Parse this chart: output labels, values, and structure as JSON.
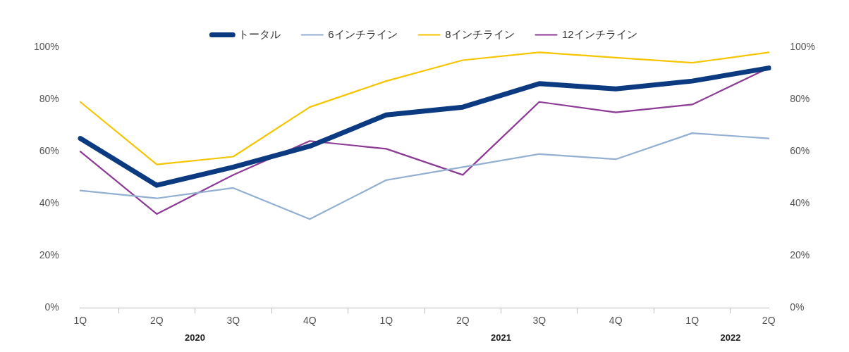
{
  "chart_data": {
    "type": "line",
    "categories": [
      "1Q",
      "2Q",
      "3Q",
      "4Q",
      "1Q",
      "2Q",
      "3Q",
      "4Q",
      "1Q",
      "2Q"
    ],
    "series": [
      {
        "name": "トータル",
        "color": "#0b3a80",
        "values": [
          65,
          47,
          54,
          62,
          74,
          77,
          86,
          84,
          87,
          92
        ]
      },
      {
        "name": "6インチライン",
        "color": "#93afd1",
        "values": [
          45,
          42,
          46,
          34,
          49,
          54,
          59,
          57,
          67,
          65
        ]
      },
      {
        "name": "8インチライン",
        "color": "#f5c500",
        "values": [
          79,
          55,
          58,
          77,
          87,
          95,
          98,
          96,
          94,
          98
        ]
      },
      {
        "name": "12インチライン",
        "color": "#8c3a96",
        "values": [
          60,
          36,
          51,
          64,
          61,
          51,
          79,
          75,
          78,
          92
        ]
      }
    ],
    "ylim": [
      0,
      100
    ],
    "yticks": [
      {
        "value": 0,
        "label": "0%"
      },
      {
        "value": 20,
        "label": "20%"
      },
      {
        "value": 40,
        "label": "40%"
      },
      {
        "value": 60,
        "label": "60%"
      },
      {
        "value": 80,
        "label": "80%"
      },
      {
        "value": 100,
        "label": "100%"
      }
    ],
    "y2lim": [
      0,
      100
    ],
    "y2ticks": [
      {
        "value": 0,
        "label": "0%"
      },
      {
        "value": 20,
        "label": "20%"
      },
      {
        "value": 40,
        "label": "40%"
      },
      {
        "value": 60,
        "label": "60%"
      },
      {
        "value": 80,
        "label": "80%"
      },
      {
        "value": 100,
        "label": "100%"
      }
    ],
    "annotations": [
      "2020",
      "2021",
      "2022"
    ],
    "legend": "top",
    "grid": false,
    "marker": "none",
    "line_style": "solid"
  }
}
